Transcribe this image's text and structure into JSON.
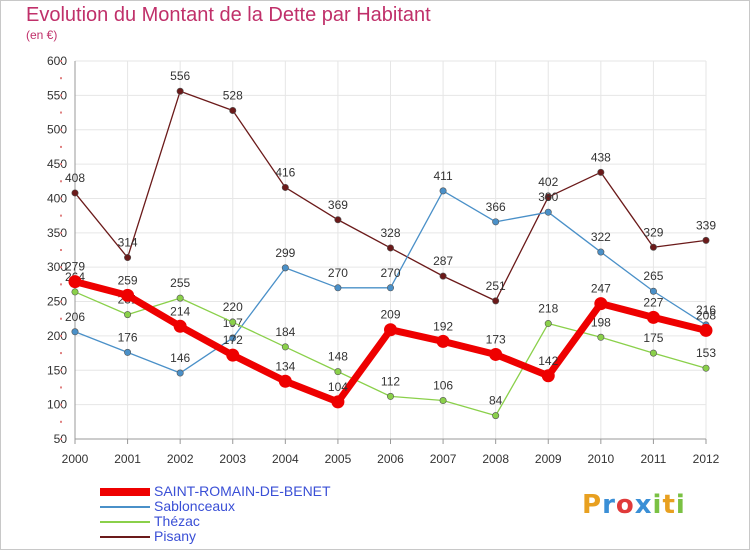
{
  "header": {
    "title": "Evolution du Montant de la Dette par Habitant",
    "subtitle": "(en €)"
  },
  "logo": {
    "letters": [
      "P",
      "r",
      "o",
      "x",
      "i",
      "t",
      "i"
    ],
    "colors": [
      "#e8a020",
      "#3a8fd6",
      "#e03a3a",
      "#3a8fd6",
      "#7ac143",
      "#e8a020",
      "#7ac143"
    ]
  },
  "colors": {
    "title": "#c0306a",
    "axis_red": "#e08080",
    "grid": "#e6e6e6"
  },
  "chart_data": {
    "type": "line",
    "title": "Evolution du Montant de la Dette par Habitant",
    "subtitle": "(en €)",
    "xlabel": "",
    "ylabel": "",
    "x": [
      "2000",
      "2001",
      "2002",
      "2003",
      "2004",
      "2005",
      "2006",
      "2007",
      "2008",
      "2009",
      "2010",
      "2011",
      "2012"
    ],
    "ylim": [
      50,
      600
    ],
    "yticks": [
      50,
      100,
      150,
      200,
      250,
      300,
      350,
      400,
      450,
      500,
      550,
      600
    ],
    "grid": true,
    "legend_position": "bottom-left",
    "series": [
      {
        "name": "Pisany",
        "color": "#6b1a1a",
        "width": 1.3,
        "values": [
          408,
          314,
          556,
          528,
          416,
          369,
          328,
          287,
          251,
          402,
          438,
          329,
          339
        ]
      },
      {
        "name": "Sablonceaux",
        "color": "#4a90c8",
        "width": 1.3,
        "values": [
          206,
          176,
          146,
          197,
          299,
          270,
          270,
          411,
          366,
          380,
          322,
          265,
          216
        ]
      },
      {
        "name": "Thézac",
        "color": "#8ad04a",
        "width": 1.3,
        "values": [
          264,
          231,
          255,
          220,
          184,
          148,
          112,
          106,
          84,
          218,
          198,
          175,
          153
        ]
      },
      {
        "name": "SAINT-ROMAIN-DE-BENET",
        "color": "#ee0000",
        "width": 7,
        "values": [
          279,
          259,
          214,
          172,
          134,
          104,
          209,
          192,
          173,
          142,
          247,
          227,
          208
        ]
      }
    ],
    "legend_order": [
      "SAINT-ROMAIN-DE-BENET",
      "Sablonceaux",
      "Thézac",
      "Pisany"
    ]
  }
}
